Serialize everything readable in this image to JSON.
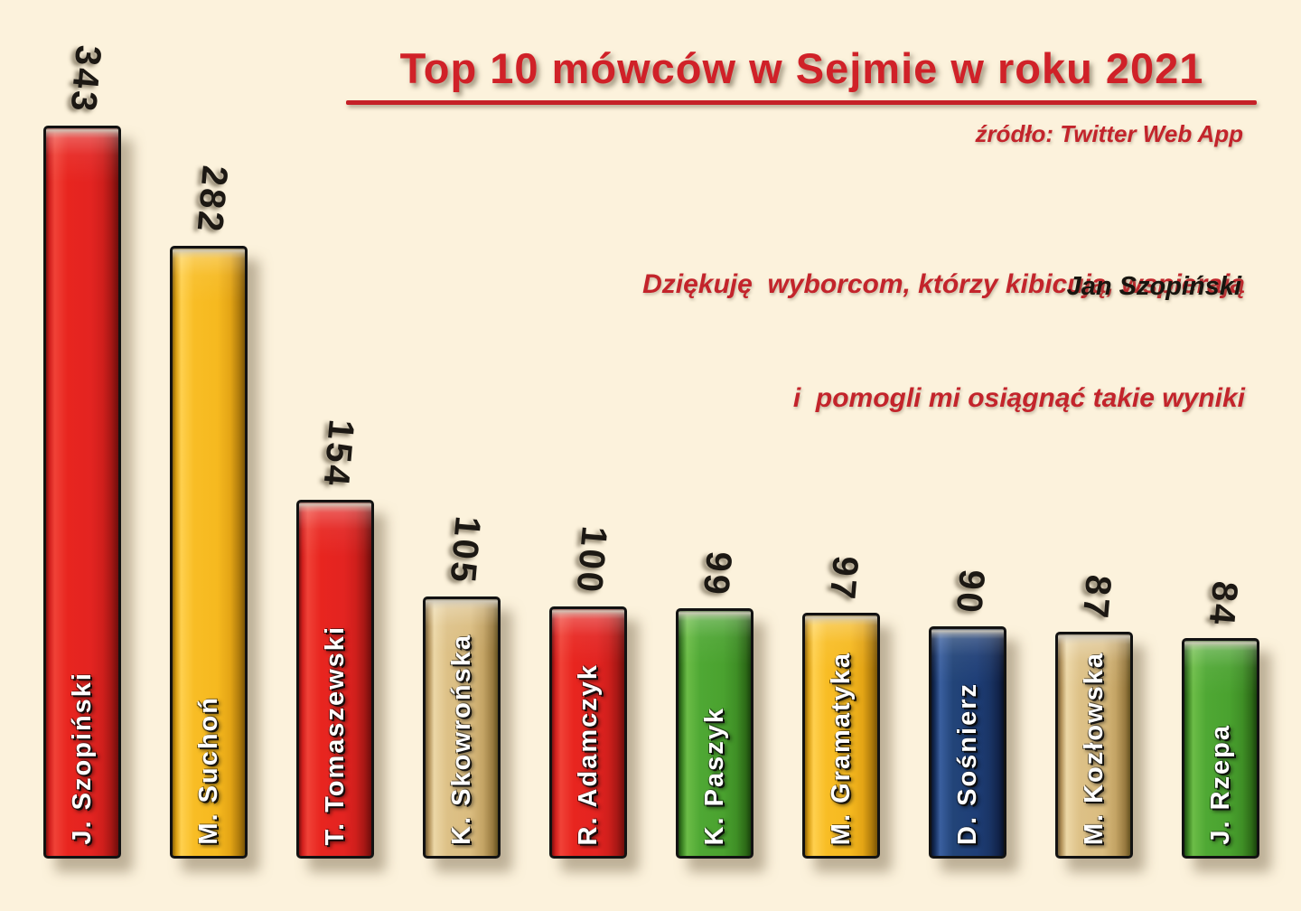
{
  "chart_data": {
    "type": "bar",
    "title": "Top 10 mówców w Sejmie w roku 2021",
    "source": "źródło: Twitter Web App",
    "annotation": {
      "quote_lines": [
        "Dziękuję  wyborcom, którzy kibicują, wspierają",
        "i  pomogli mi osiągnąć takie wyniki"
      ],
      "author": "Jan Szopiński"
    },
    "categories": [
      "J. Szopiński",
      "M. Suchoń",
      "T. Tomaszewski",
      "K. Skowrońska",
      "R. Adamczyk",
      "K. Paszyk",
      "M. Gramatyka",
      "D. Sośnierz",
      "M. Kozłowska",
      "J. Rzepa"
    ],
    "values": [
      343,
      282,
      154,
      105,
      100,
      99,
      97,
      90,
      87,
      84
    ],
    "bar_colors": [
      "red",
      "yellow",
      "red",
      "tan",
      "red",
      "green",
      "yellow",
      "navy",
      "tan",
      "green"
    ],
    "palette": {
      "red": "#e32421",
      "yellow": "#f6b91f",
      "tan": "#dabc7f",
      "green": "#4aa22f",
      "navy": "#1e3e77",
      "background": "#fcf2dc",
      "accent_red": "#c52027",
      "value_label": "#1c1813",
      "category_label": "#ffffff"
    },
    "xlabel": "",
    "ylabel": "",
    "axes_visible": false,
    "gridlines": false,
    "legend": "none",
    "value_label_style": "rotated 90° above each bar",
    "category_label_style": "rotated 90° in white inside each bar"
  }
}
